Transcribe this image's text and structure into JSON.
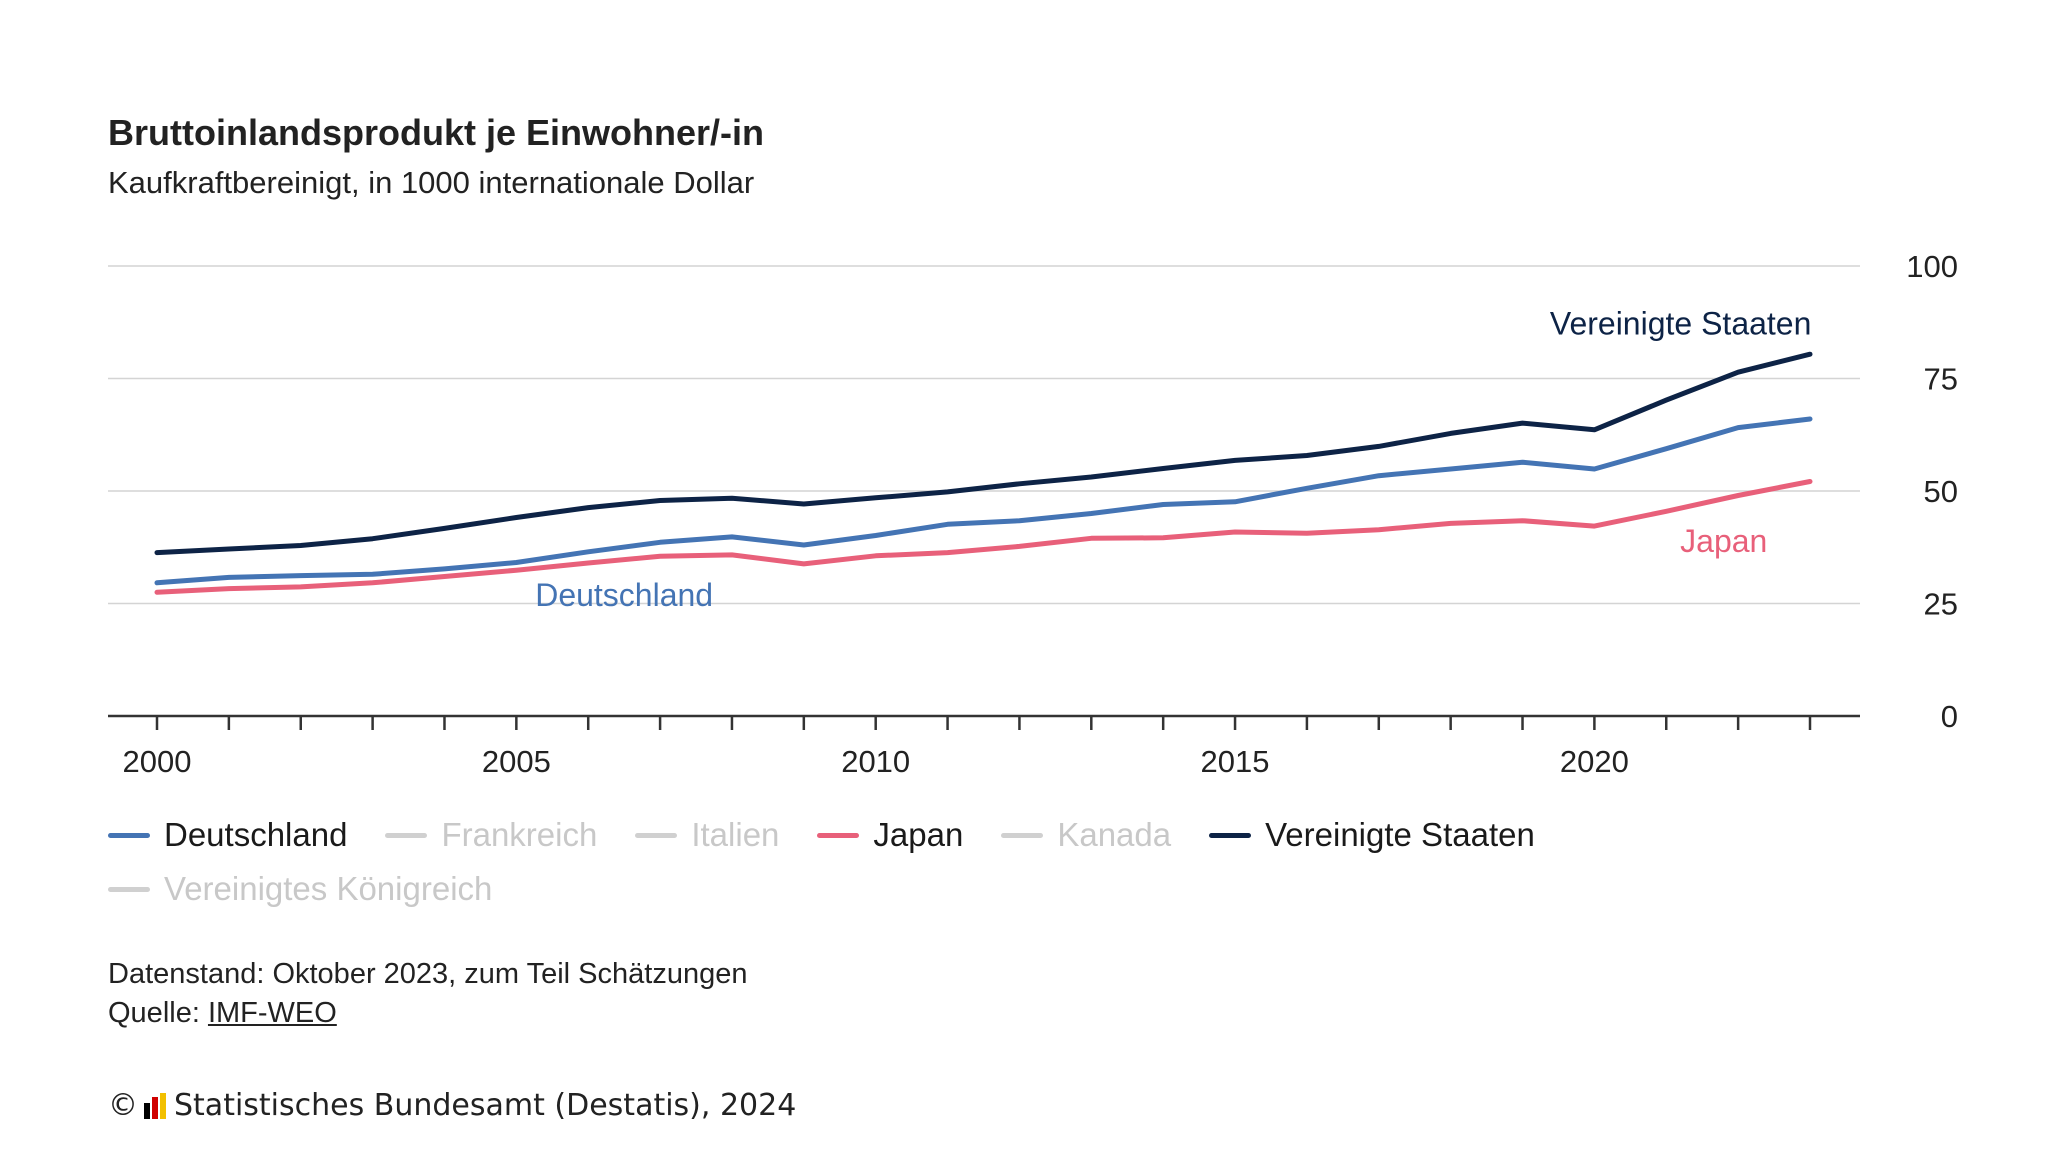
{
  "title": "Bruttoinlandsprodukt je Einwohner/-in",
  "subtitle": "Kaufkraftbereinigt, in 1000 internationale Dollar",
  "legend": [
    {
      "label": "Deutschland",
      "color": "#4474b4",
      "active": true
    },
    {
      "label": "Frankreich",
      "color": "#d0d0d0",
      "active": false
    },
    {
      "label": "Italien",
      "color": "#d0d0d0",
      "active": false
    },
    {
      "label": "Japan",
      "color": "#e8607a",
      "active": true
    },
    {
      "label": "Kanada",
      "color": "#d0d0d0",
      "active": false
    },
    {
      "label": "Vereinigte Staaten",
      "color": "#0d2346",
      "active": true
    },
    {
      "label": "Vereinigtes Königreich",
      "color": "#d0d0d0",
      "active": false
    }
  ],
  "footnote": {
    "datenstand": "Datenstand: Oktober 2023, zum Teil Schätzungen",
    "quelle_prefix": "Quelle: ",
    "quelle_link": "IMF-WEO"
  },
  "copyright": {
    "symbol": "©",
    "text": "Statistisches Bundesamt (Destatis), 2024"
  },
  "chart_data": {
    "type": "line",
    "title": "Bruttoinlandsprodukt je Einwohner/-in",
    "subtitle": "Kaufkraftbereinigt, in 1000 internationale Dollar",
    "xlabel": "",
    "ylabel": "",
    "ylim": [
      0,
      100
    ],
    "yticks": [
      0,
      25,
      50,
      75,
      100
    ],
    "xticks": [
      2000,
      2005,
      2010,
      2015,
      2020
    ],
    "x": [
      2000,
      2001,
      2002,
      2003,
      2004,
      2005,
      2006,
      2007,
      2008,
      2009,
      2010,
      2011,
      2012,
      2013,
      2014,
      2015,
      2016,
      2017,
      2018,
      2019,
      2020,
      2021,
      2022,
      2023
    ],
    "series": [
      {
        "name": "Vereinigte Staaten",
        "color": "#0d2346",
        "values": [
          36.3,
          37.1,
          37.9,
          39.4,
          41.7,
          44.1,
          46.3,
          47.9,
          48.4,
          47.1,
          48.5,
          49.8,
          51.6,
          53.1,
          55.0,
          56.8,
          57.9,
          59.9,
          62.8,
          65.1,
          63.6,
          70.2,
          76.4,
          80.4
        ]
      },
      {
        "name": "Deutschland",
        "color": "#4474b4",
        "values": [
          29.6,
          30.8,
          31.2,
          31.5,
          32.7,
          34.1,
          36.5,
          38.6,
          39.8,
          38.0,
          40.1,
          42.6,
          43.4,
          45.0,
          47.0,
          47.6,
          50.6,
          53.4,
          54.9,
          56.4,
          54.9,
          59.4,
          64.1,
          66.0
        ]
      },
      {
        "name": "Japan",
        "color": "#e8607a",
        "values": [
          27.5,
          28.3,
          28.7,
          29.6,
          31.0,
          32.4,
          34.0,
          35.5,
          35.8,
          33.8,
          35.6,
          36.3,
          37.7,
          39.5,
          39.6,
          40.9,
          40.6,
          41.4,
          42.8,
          43.4,
          42.2,
          45.5,
          49.0,
          52.1
        ]
      }
    ],
    "annotations": [
      {
        "text": "Vereinigte Staaten",
        "series": "Vereinigte Staaten",
        "color": "#0d2346"
      },
      {
        "text": "Deutschland",
        "series": "Deutschland",
        "color": "#4474b4"
      },
      {
        "text": "Japan",
        "series": "Japan",
        "color": "#e8607a"
      }
    ]
  }
}
